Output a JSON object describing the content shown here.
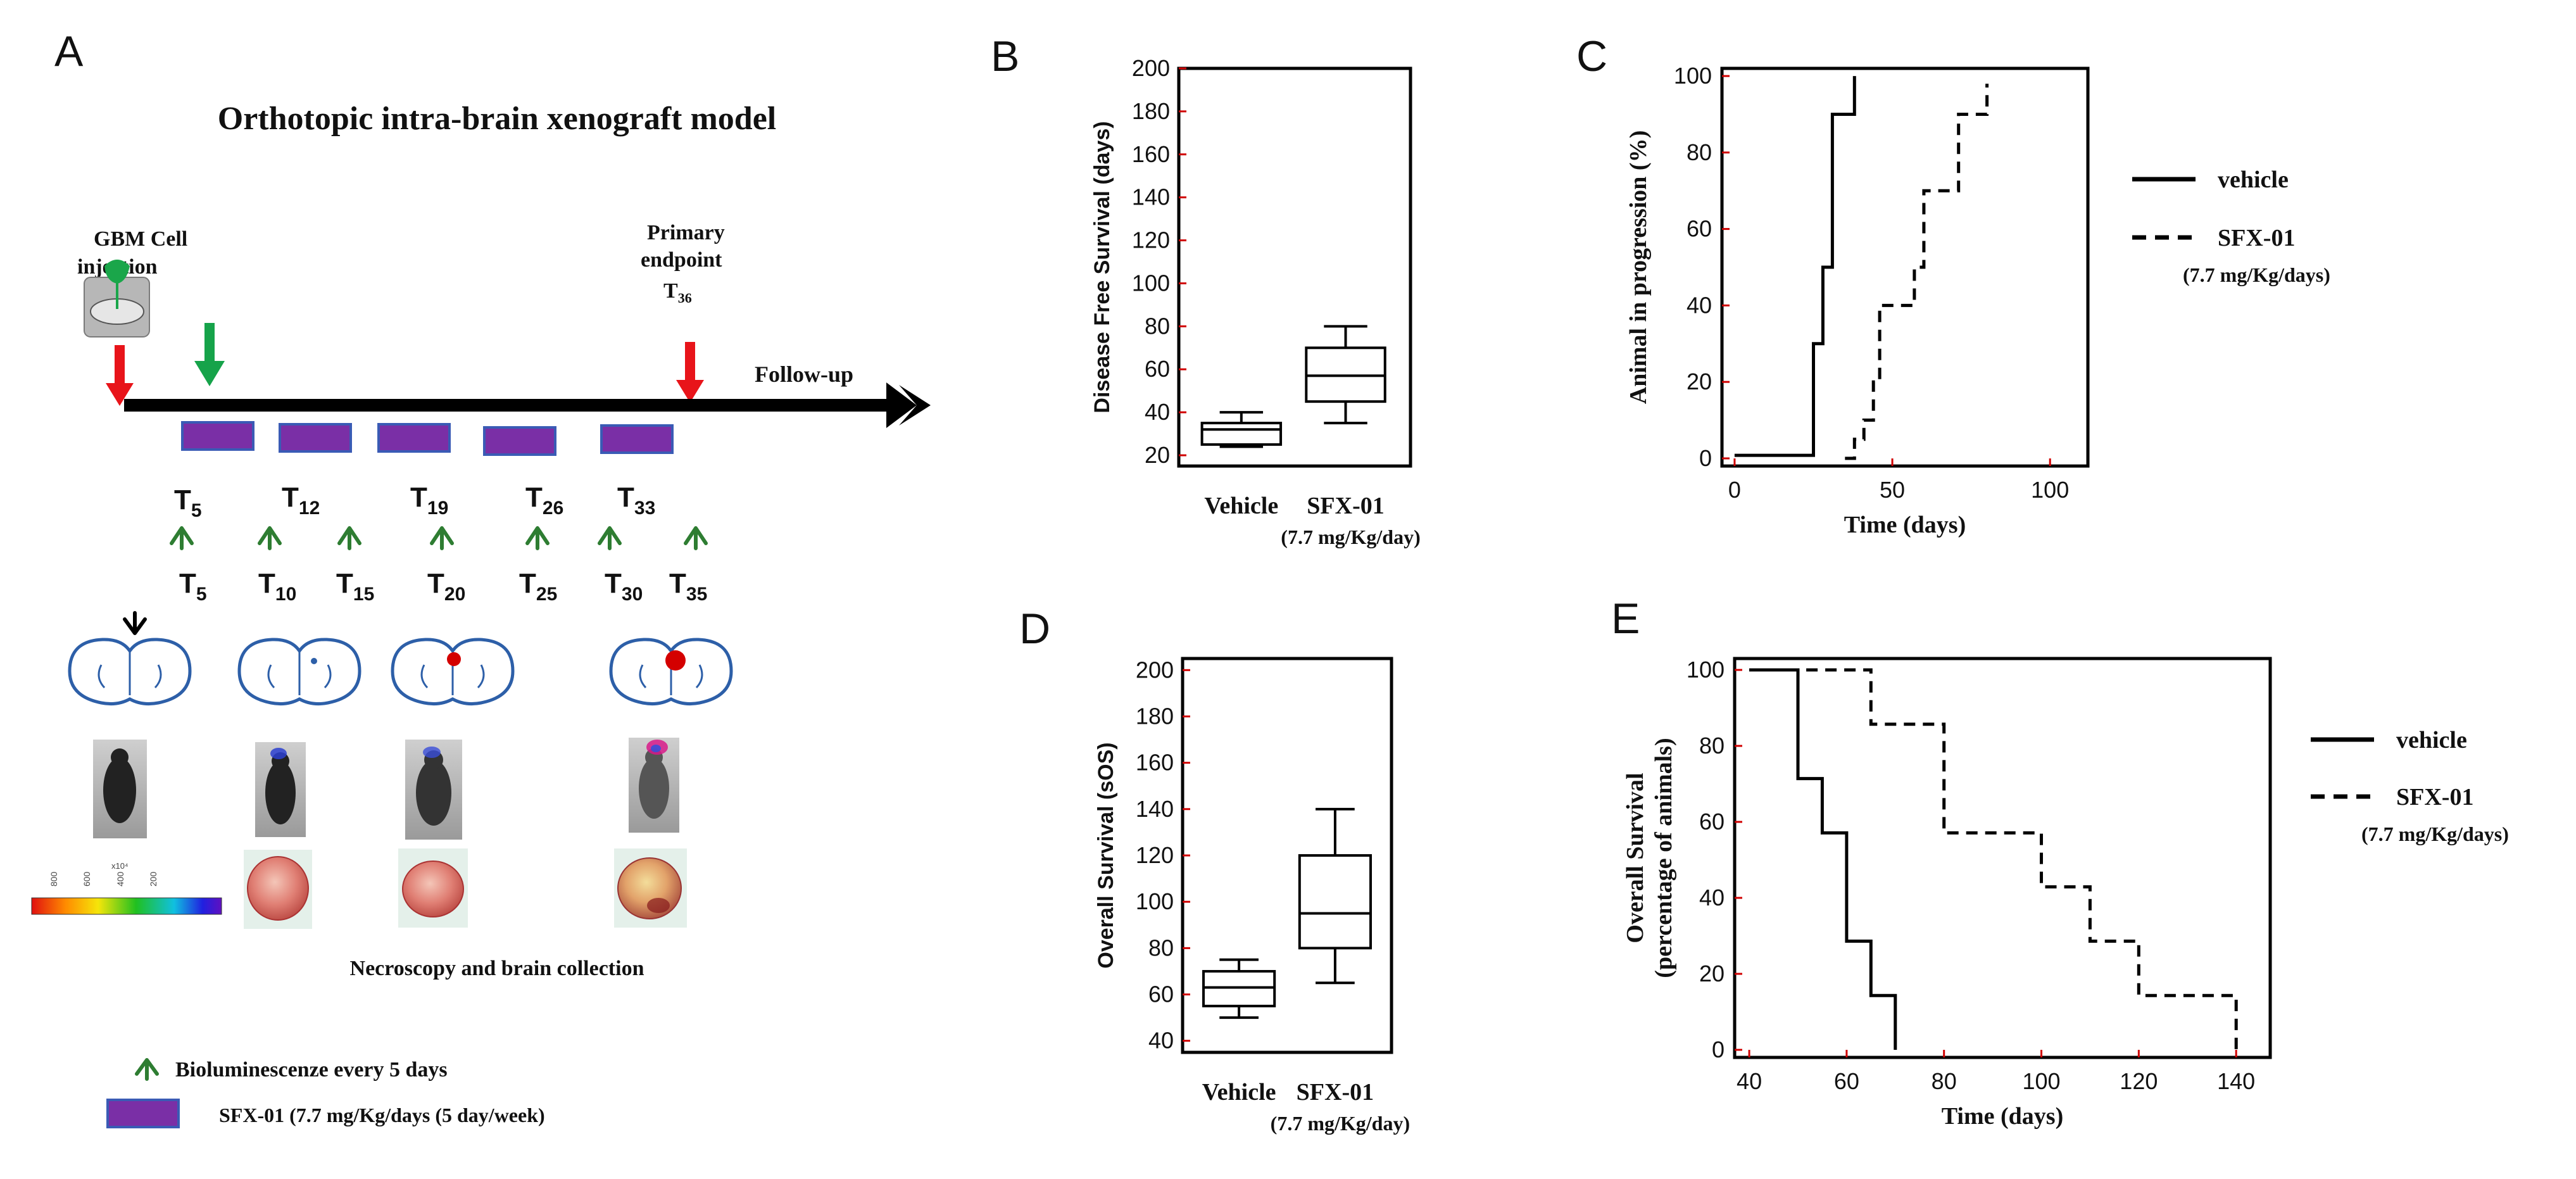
{
  "colors": {
    "treatment_bar": "#7a2fa6",
    "treatment_bar_edge": "#3a5bb5",
    "arrow_red": "#e8141a",
    "arrow_green": "#16a34a",
    "chevron_green": "#2e7d32",
    "brain_outline": "#2d5fa8",
    "tumor_red": "#d40000",
    "tick_red": "#d00000"
  },
  "panelA": {
    "label": "A",
    "title": "Orthotopic intra-brain xenograft model",
    "injection_label": [
      "GBM Cell",
      "injection"
    ],
    "endpoint_label": [
      "Primary",
      "endpoint"
    ],
    "endpoint_time": "T",
    "endpoint_time_sub": "36",
    "followup_label": "Follow-up",
    "treatment_times": [
      {
        "base": "T",
        "sub": "5"
      },
      {
        "base": "T",
        "sub": "12"
      },
      {
        "base": "T",
        "sub": "19"
      },
      {
        "base": "T",
        "sub": "26"
      },
      {
        "base": "T",
        "sub": "33"
      }
    ],
    "imaging_times": [
      {
        "base": "T",
        "sub": "5"
      },
      {
        "base": "T",
        "sub": "10"
      },
      {
        "base": "T",
        "sub": "15"
      },
      {
        "base": "T",
        "sub": "20"
      },
      {
        "base": "T",
        "sub": "25"
      },
      {
        "base": "T",
        "sub": "30"
      },
      {
        "base": "T",
        "sub": "35"
      }
    ],
    "colorbar_ticks": [
      "800",
      "600",
      "400",
      "200"
    ],
    "colorbar_exponent": "x10⁴",
    "necroscopy_label": "Necroscopy and brain collection",
    "legend_bioluminescence": "Bioluminescenze every 5 days",
    "legend_treatment": "SFX-01 (7.7 mg/Kg/days (5 day/week)"
  },
  "chart_data": [
    {
      "panel": "B",
      "type": "box",
      "ylabel": "Disease Free Survival (days)",
      "ylim": [
        15,
        200
      ],
      "yticks": [
        20,
        40,
        60,
        80,
        100,
        120,
        140,
        160,
        180,
        200
      ],
      "categories": [
        "Vehicle",
        "SFX-01"
      ],
      "category_sublabels": [
        "",
        "(7.7 mg/Kg/day)"
      ],
      "boxes": [
        {
          "min": 24,
          "q1": 25,
          "median": 32,
          "q3": 35,
          "max": 40
        },
        {
          "min": 35,
          "q1": 45,
          "median": 57,
          "q3": 70,
          "max": 80
        }
      ]
    },
    {
      "panel": "C",
      "type": "line",
      "xlabel": "Time (days)",
      "ylabel": "Animal in progression (%)",
      "xlim": [
        -4,
        112
      ],
      "ylim": [
        -2,
        102
      ],
      "xticks": [
        0,
        50,
        100
      ],
      "yticks": [
        0,
        20,
        40,
        60,
        80,
        100
      ],
      "series": [
        {
          "name": "vehicle",
          "style": "solid",
          "x": [
            0,
            25,
            25,
            28,
            28,
            31,
            31,
            35,
            35,
            38,
            38
          ],
          "y": [
            0.8,
            0.8,
            30,
            30,
            50,
            50,
            90,
            90,
            90,
            90,
            100
          ]
        },
        {
          "name": "SFX-01",
          "style": "dashed",
          "x": [
            35,
            38,
            38,
            41,
            41,
            44,
            44,
            46,
            46,
            53,
            53,
            57,
            57,
            60,
            60,
            67,
            67,
            71,
            71,
            76,
            76,
            80,
            80
          ],
          "y": [
            0,
            0,
            5,
            5,
            10,
            10,
            20,
            20,
            40,
            40,
            40,
            40,
            50,
            50,
            70,
            70,
            70,
            70,
            90,
            90,
            90,
            90,
            98
          ]
        }
      ],
      "legend": [
        {
          "label": "vehicle",
          "style": "solid"
        },
        {
          "label": "SFX-01",
          "sublabel": "(7.7 mg/Kg/days)",
          "style": "dashed"
        }
      ]
    },
    {
      "panel": "D",
      "type": "box",
      "ylabel": "Overall Survival (sOS)",
      "ylim": [
        35,
        205
      ],
      "yticks": [
        40,
        60,
        80,
        100,
        120,
        140,
        160,
        180,
        200
      ],
      "categories": [
        "Vehicle",
        "SFX-01"
      ],
      "category_sublabels": [
        "",
        "(7.7 mg/Kg/day)"
      ],
      "boxes": [
        {
          "min": 50,
          "q1": 55,
          "median": 63,
          "q3": 70,
          "max": 75
        },
        {
          "min": 65,
          "q1": 80,
          "median": 95,
          "q3": 120,
          "max": 140
        }
      ]
    },
    {
      "panel": "E",
      "type": "line",
      "xlabel": "Time (days)",
      "ylabel": [
        "Overall Survival",
        "(percentage of animals)"
      ],
      "xlim": [
        37,
        147
      ],
      "ylim": [
        -2,
        103
      ],
      "xticks": [
        40,
        60,
        80,
        100,
        120,
        140
      ],
      "yticks": [
        0,
        20,
        40,
        60,
        80,
        100
      ],
      "series": [
        {
          "name": "vehicle",
          "style": "solid",
          "x": [
            40,
            50,
            50,
            55,
            55,
            60,
            60,
            65,
            65,
            70,
            70
          ],
          "y": [
            100,
            100,
            71.4,
            71.4,
            57.1,
            57.1,
            28.6,
            28.6,
            14.3,
            14.3,
            0
          ]
        },
        {
          "name": "SFX-01",
          "style": "dashed",
          "x": [
            40,
            65,
            65,
            80,
            80,
            100,
            100,
            110,
            110,
            120,
            120,
            140,
            140
          ],
          "y": [
            100,
            100,
            85.7,
            85.7,
            57.1,
            57.1,
            42.9,
            42.9,
            28.6,
            28.6,
            14.3,
            14.3,
            0
          ]
        }
      ],
      "legend": [
        {
          "label": "vehicle",
          "style": "solid"
        },
        {
          "label": "SFX-01",
          "sublabel": "(7.7 mg/Kg/days)",
          "style": "dashed"
        }
      ]
    }
  ]
}
